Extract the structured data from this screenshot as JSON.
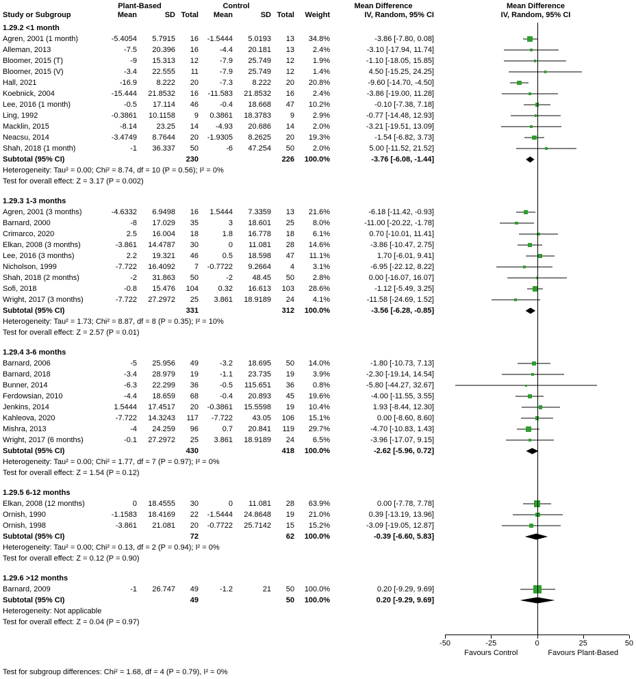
{
  "header": {
    "col_study": "Study or Subgroup",
    "group1": "Plant-Based",
    "group2": "Control",
    "col_mean": "Mean",
    "col_sd": "SD",
    "col_total": "Total",
    "col_weight": "Weight",
    "md_title": "Mean Difference",
    "md_method": "IV, Random, 95% CI"
  },
  "chart_data": {
    "type": "forest",
    "effect_measure": "Mean Difference",
    "model": "IV, Random, 95% CI",
    "xlim": [
      -50,
      50
    ],
    "ticks": [
      -50,
      -25,
      0,
      25,
      50
    ],
    "favours_left": "Favours Control",
    "favours_right": "Favours Plant-Based",
    "footer_note": "Test for subgroup differences: Chi² = 1.68, df = 4 (P = 0.79), I² = 0%",
    "colors": {
      "marker": "#2E9E2E",
      "ci_line": "#000000",
      "diamond": "#000000",
      "axis": "#000000"
    },
    "subgroups": [
      {
        "label": "1.29.2 <1 month",
        "studies": [
          {
            "name": "Agren, 2001 (1 month)",
            "m1": -5.4054,
            "sd1": 5.7915,
            "n1": 16,
            "m2": -1.5444,
            "sd2": 5.0193,
            "n2": 13,
            "w": 34.8,
            "est": -3.86,
            "lo": -7.8,
            "hi": 0.08
          },
          {
            "name": "Alleman, 2013",
            "m1": -7.5,
            "sd1": 20.396,
            "n1": 16,
            "m2": -4.4,
            "sd2": 20.181,
            "n2": 13,
            "w": 2.4,
            "est": -3.1,
            "lo": -17.94,
            "hi": 11.74
          },
          {
            "name": "Bloomer, 2015 (T)",
            "m1": -9,
            "sd1": 15.313,
            "n1": 12,
            "m2": -7.9,
            "sd2": 25.749,
            "n2": 12,
            "w": 1.9,
            "est": -1.1,
            "lo": -18.05,
            "hi": 15.85
          },
          {
            "name": "Bloomer, 2015 (V)",
            "m1": -3.4,
            "sd1": 22.555,
            "n1": 11,
            "m2": -7.9,
            "sd2": 25.749,
            "n2": 12,
            "w": 1.4,
            "est": 4.5,
            "lo": -15.25,
            "hi": 24.25
          },
          {
            "name": "Hall, 2021",
            "m1": -16.9,
            "sd1": 8.222,
            "n1": 20,
            "m2": -7.3,
            "sd2": 8.222,
            "n2": 20,
            "w": 20.8,
            "est": -9.6,
            "lo": -14.7,
            "hi": -4.5
          },
          {
            "name": "Koebnick, 2004",
            "m1": -15.444,
            "sd1": 21.8532,
            "n1": 16,
            "m2": -11.583,
            "sd2": 21.8532,
            "n2": 16,
            "w": 2.4,
            "est": -3.86,
            "lo": -19.0,
            "hi": 11.28
          },
          {
            "name": "Lee, 2016 (1 month)",
            "m1": -0.5,
            "sd1": 17.114,
            "n1": 46,
            "m2": -0.4,
            "sd2": 18.668,
            "n2": 47,
            "w": 10.2,
            "est": -0.1,
            "lo": -7.38,
            "hi": 7.18
          },
          {
            "name": "Ling, 1992",
            "m1": -0.3861,
            "sd1": 10.1158,
            "n1": 9,
            "m2": 0.3861,
            "sd2": 18.3783,
            "n2": 9,
            "w": 2.9,
            "est": -0.77,
            "lo": -14.48,
            "hi": 12.93
          },
          {
            "name": "Macklin, 2015",
            "m1": -8.14,
            "sd1": 23.25,
            "n1": 14,
            "m2": -4.93,
            "sd2": 20.686,
            "n2": 14,
            "w": 2.0,
            "est": -3.21,
            "lo": -19.51,
            "hi": 13.09
          },
          {
            "name": "Neacsu, 2014",
            "m1": -3.4749,
            "sd1": 8.7644,
            "n1": 20,
            "m2": -1.9305,
            "sd2": 8.2625,
            "n2": 20,
            "w": 19.3,
            "est": -1.54,
            "lo": -6.82,
            "hi": 3.73
          },
          {
            "name": "Shah, 2018 (1 month)",
            "m1": -1,
            "sd1": 36.337,
            "n1": 50,
            "m2": -6,
            "sd2": 47.254,
            "n2": 50,
            "w": 2.0,
            "est": 5.0,
            "lo": -11.52,
            "hi": 21.52
          }
        ],
        "subtotal": {
          "label": "Subtotal (95% CI)",
          "n1": 230,
          "n2": 226,
          "w": 100.0,
          "est": -3.76,
          "lo": -6.08,
          "hi": -1.44
        },
        "heterogeneity": "Heterogeneity: Tau² = 0.00; Chi² = 8.74, df = 10 (P = 0.56); I² = 0%",
        "test": "Test for overall effect: Z = 3.17 (P = 0.002)"
      },
      {
        "label": "1.29.3 1-3 months",
        "studies": [
          {
            "name": "Agren, 2001 (3 months)",
            "m1": -4.6332,
            "sd1": 6.9498,
            "n1": 16,
            "m2": 1.5444,
            "sd2": 7.3359,
            "n2": 13,
            "w": 21.6,
            "est": -6.18,
            "lo": -11.42,
            "hi": -0.93
          },
          {
            "name": "Barnard, 2000",
            "m1": -8,
            "sd1": 17.029,
            "n1": 35,
            "m2": 3,
            "sd2": 18.601,
            "n2": 25,
            "w": 8.0,
            "est": -11.0,
            "lo": -20.22,
            "hi": -1.78
          },
          {
            "name": "Crimarco, 2020",
            "m1": 2.5,
            "sd1": 16.004,
            "n1": 18,
            "m2": 1.8,
            "sd2": 16.778,
            "n2": 18,
            "w": 6.1,
            "est": 0.7,
            "lo": -10.01,
            "hi": 11.41
          },
          {
            "name": "Elkan, 2008 (3 months)",
            "m1": -3.861,
            "sd1": 14.4787,
            "n1": 30,
            "m2": 0,
            "sd2": 11.081,
            "n2": 28,
            "w": 14.6,
            "est": -3.86,
            "lo": -10.47,
            "hi": 2.75
          },
          {
            "name": "Lee, 2016 (3 months)",
            "m1": 2.2,
            "sd1": 19.321,
            "n1": 46,
            "m2": 0.5,
            "sd2": 18.598,
            "n2": 47,
            "w": 11.1,
            "est": 1.7,
            "lo": -6.01,
            "hi": 9.41
          },
          {
            "name": "Nicholson, 1999",
            "m1": -7.722,
            "sd1": 16.4092,
            "n1": 7,
            "m2": -0.7722,
            "sd2": 9.2664,
            "n2": 4,
            "w": 3.1,
            "est": -6.95,
            "lo": -22.12,
            "hi": 8.22
          },
          {
            "name": "Shah, 2018 (2 months)",
            "m1": -2,
            "sd1": 31.863,
            "n1": 50,
            "m2": -2,
            "sd2": 48.45,
            "n2": 50,
            "w": 2.8,
            "est": 0.0,
            "lo": -16.07,
            "hi": 16.07
          },
          {
            "name": "Sofi, 2018",
            "m1": -0.8,
            "sd1": 15.476,
            "n1": 104,
            "m2": 0.32,
            "sd2": 16.613,
            "n2": 103,
            "w": 28.6,
            "est": -1.12,
            "lo": -5.49,
            "hi": 3.25
          },
          {
            "name": "Wright, 2017 (3 months)",
            "m1": -7.722,
            "sd1": 27.2972,
            "n1": 25,
            "m2": 3.861,
            "sd2": 18.9189,
            "n2": 24,
            "w": 4.1,
            "est": -11.58,
            "lo": -24.69,
            "hi": 1.52
          }
        ],
        "subtotal": {
          "label": "Subtotal (95% CI)",
          "n1": 331,
          "n2": 312,
          "w": 100.0,
          "est": -3.56,
          "lo": -6.28,
          "hi": -0.85
        },
        "heterogeneity": "Heterogeneity: Tau² = 1.73; Chi² = 8.87, df = 8 (P = 0.35); I² = 10%",
        "test": "Test for overall effect: Z = 2.57 (P = 0.01)"
      },
      {
        "label": "1.29.4 3-6 months",
        "studies": [
          {
            "name": "Barnard, 2006",
            "m1": -5,
            "sd1": 25.956,
            "n1": 49,
            "m2": -3.2,
            "sd2": 18.695,
            "n2": 50,
            "w": 14.0,
            "est": -1.8,
            "lo": -10.73,
            "hi": 7.13
          },
          {
            "name": "Barnard, 2018",
            "m1": -3.4,
            "sd1": 28.979,
            "n1": 19,
            "m2": -1.1,
            "sd2": 23.735,
            "n2": 19,
            "w": 3.9,
            "est": -2.3,
            "lo": -19.14,
            "hi": 14.54
          },
          {
            "name": "Bunner, 2014",
            "m1": -6.3,
            "sd1": 22.299,
            "n1": 36,
            "m2": -0.5,
            "sd2": 115.651,
            "n2": 36,
            "w": 0.8,
            "est": -5.8,
            "lo": -44.27,
            "hi": 32.67
          },
          {
            "name": "Ferdowsian, 2010",
            "m1": -4.4,
            "sd1": 18.659,
            "n1": 68,
            "m2": -0.4,
            "sd2": 20.893,
            "n2": 45,
            "w": 19.6,
            "est": -4.0,
            "lo": -11.55,
            "hi": 3.55
          },
          {
            "name": "Jenkins, 2014",
            "m1": 1.5444,
            "sd1": 17.4517,
            "n1": 20,
            "m2": -0.3861,
            "sd2": 15.5598,
            "n2": 19,
            "w": 10.4,
            "est": 1.93,
            "lo": -8.44,
            "hi": 12.3
          },
          {
            "name": "Kahleova, 2020",
            "m1": -7.722,
            "sd1": 14.3243,
            "n1": 117,
            "m2": -7.722,
            "sd2": 43.05,
            "n2": 106,
            "w": 15.1,
            "est": 0.0,
            "lo": -8.6,
            "hi": 8.6
          },
          {
            "name": "Mishra, 2013",
            "m1": -4,
            "sd1": 24.259,
            "n1": 96,
            "m2": 0.7,
            "sd2": 20.841,
            "n2": 119,
            "w": 29.7,
            "est": -4.7,
            "lo": -10.83,
            "hi": 1.43
          },
          {
            "name": "Wright, 2017 (6 months)",
            "m1": -0.1,
            "sd1": 27.2972,
            "n1": 25,
            "m2": 3.861,
            "sd2": 18.9189,
            "n2": 24,
            "w": 6.5,
            "est": -3.96,
            "lo": -17.07,
            "hi": 9.15
          }
        ],
        "subtotal": {
          "label": "Subtotal (95% CI)",
          "n1": 430,
          "n2": 418,
          "w": 100.0,
          "est": -2.62,
          "lo": -5.96,
          "hi": 0.72
        },
        "heterogeneity": "Heterogeneity: Tau² = 0.00; Chi² = 1.77, df = 7 (P = 0.97); I² = 0%",
        "test": "Test for overall effect: Z = 1.54 (P = 0.12)"
      },
      {
        "label": "1.29.5 6-12 months",
        "studies": [
          {
            "name": "Elkan, 2008 (12 months)",
            "m1": 0,
            "sd1": 18.4555,
            "n1": 30,
            "m2": 0,
            "sd2": 11.081,
            "n2": 28,
            "w": 63.9,
            "est": 0.0,
            "lo": -7.78,
            "hi": 7.78
          },
          {
            "name": "Ornish, 1990",
            "m1": -1.1583,
            "sd1": 18.4169,
            "n1": 22,
            "m2": -1.5444,
            "sd2": 24.8648,
            "n2": 19,
            "w": 21.0,
            "est": 0.39,
            "lo": -13.19,
            "hi": 13.96
          },
          {
            "name": "Ornish, 1998",
            "m1": -3.861,
            "sd1": 21.081,
            "n1": 20,
            "m2": -0.7722,
            "sd2": 25.7142,
            "n2": 15,
            "w": 15.2,
            "est": -3.09,
            "lo": -19.05,
            "hi": 12.87
          }
        ],
        "subtotal": {
          "label": "Subtotal (95% CI)",
          "n1": 72,
          "n2": 62,
          "w": 100.0,
          "est": -0.39,
          "lo": -6.6,
          "hi": 5.83
        },
        "heterogeneity": "Heterogeneity: Tau² = 0.00; Chi² = 0.13, df = 2 (P = 0.94); I² = 0%",
        "test": "Test for overall effect: Z = 0.12 (P = 0.90)"
      },
      {
        "label": "1.29.6 >12 months",
        "studies": [
          {
            "name": "Barnard, 2009",
            "m1": -1,
            "sd1": 26.747,
            "n1": 49,
            "m2": -1.2,
            "sd2": 21,
            "n2": 50,
            "w": 100.0,
            "est": 0.2,
            "lo": -9.29,
            "hi": 9.69
          }
        ],
        "subtotal": {
          "label": "Subtotal (95% CI)",
          "n1": 49,
          "n2": 50,
          "w": 100.0,
          "est": 0.2,
          "lo": -9.29,
          "hi": 9.69
        },
        "heterogeneity": "Heterogeneity: Not applicable",
        "test": "Test for overall effect: Z = 0.04 (P = 0.97)"
      }
    ]
  }
}
